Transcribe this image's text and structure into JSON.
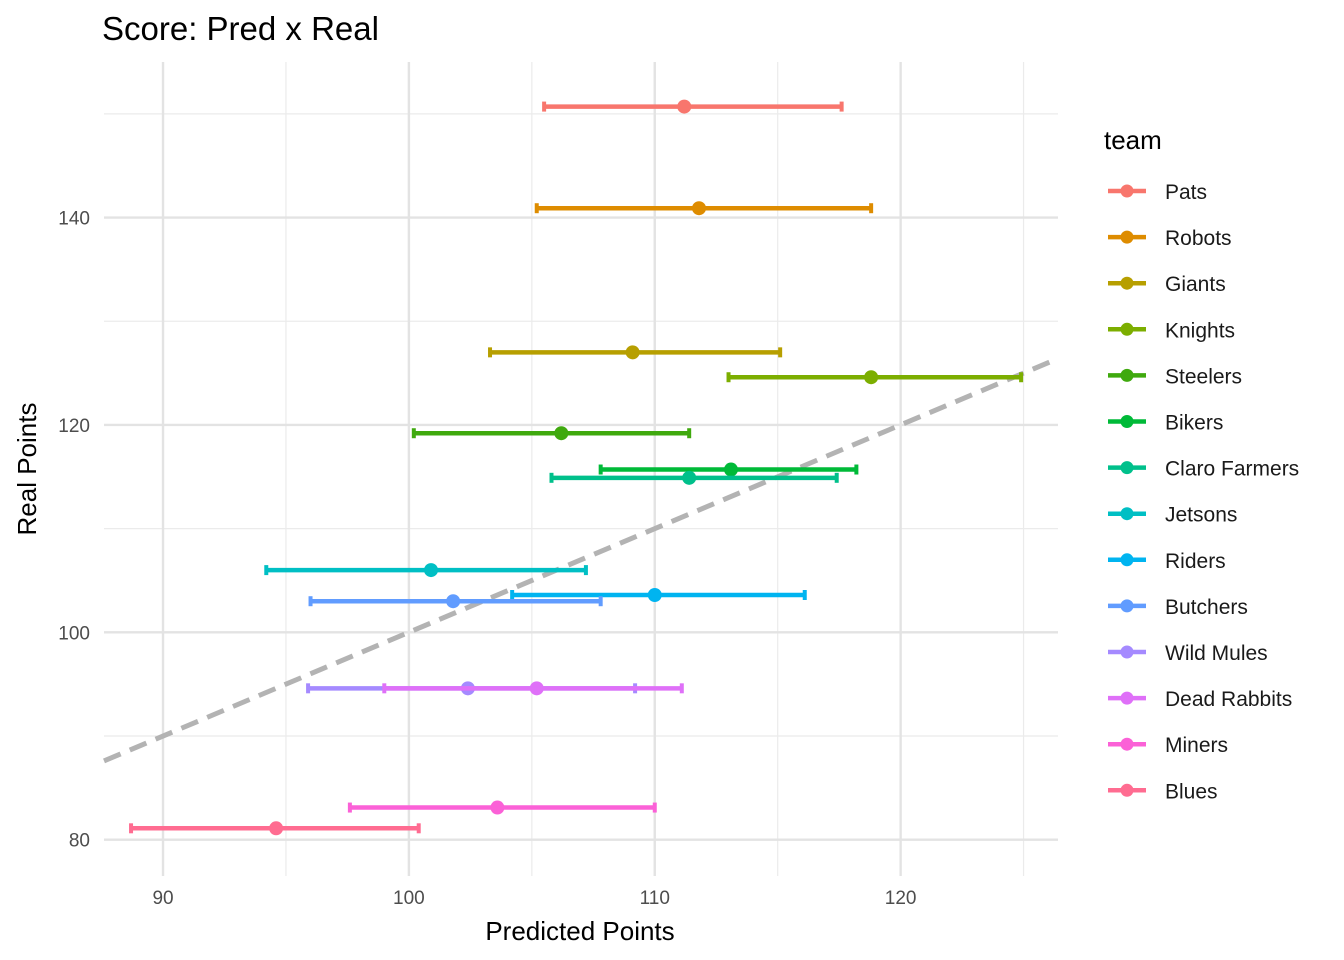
{
  "chart_data": {
    "type": "errorbar-scatter",
    "title": "Score: Pred x Real",
    "xlabel": "Predicted Points",
    "ylabel": "Real Points",
    "xlim": [
      87.6,
      126.4
    ],
    "ylim": [
      76.5,
      155
    ],
    "x_ticks": [
      90,
      100,
      110,
      120
    ],
    "x_tick_labels": [
      "90",
      "100",
      "110",
      "120"
    ],
    "x_minor": [
      95,
      105,
      115,
      125
    ],
    "y_ticks": [
      80,
      100,
      120,
      140
    ],
    "y_tick_labels": [
      "80",
      "100",
      "120",
      "140"
    ],
    "y_minor": [
      90,
      110,
      130,
      150
    ],
    "grid": true,
    "reference_line": {
      "type": "identity",
      "style": "dashed",
      "color": "#b3b3b3"
    },
    "legend": {
      "title": "team",
      "position": "right"
    },
    "series": [
      {
        "name": "Pats",
        "color": "#F8766D",
        "predicted": 111.2,
        "lower": 105.5,
        "upper": 117.6,
        "real": 150.7
      },
      {
        "name": "Robots",
        "color": "#DE8C00",
        "predicted": 111.8,
        "lower": 105.2,
        "upper": 118.8,
        "real": 140.9
      },
      {
        "name": "Giants",
        "color": "#B79F00",
        "predicted": 109.1,
        "lower": 103.3,
        "upper": 115.1,
        "real": 127.0
      },
      {
        "name": "Knights",
        "color": "#7CAE00",
        "predicted": 118.8,
        "lower": 113.0,
        "upper": 124.9,
        "real": 124.6
      },
      {
        "name": "Steelers",
        "color": "#3FA90E",
        "predicted": 106.2,
        "lower": 100.2,
        "upper": 111.4,
        "real": 119.2
      },
      {
        "name": "Bikers",
        "color": "#00BA38",
        "predicted": 113.1,
        "lower": 107.8,
        "upper": 118.2,
        "real": 115.7
      },
      {
        "name": "Claro Farmers",
        "color": "#00C08B",
        "predicted": 111.4,
        "lower": 105.8,
        "upper": 117.4,
        "real": 114.9
      },
      {
        "name": "Jetsons",
        "color": "#00BFC4",
        "predicted": 100.9,
        "lower": 94.2,
        "upper": 107.2,
        "real": 106.0
      },
      {
        "name": "Riders",
        "color": "#00B4F0",
        "predicted": 110.0,
        "lower": 104.2,
        "upper": 116.1,
        "real": 103.6
      },
      {
        "name": "Butchers",
        "color": "#619CFF",
        "predicted": 101.8,
        "lower": 96.0,
        "upper": 107.8,
        "real": 103.0
      },
      {
        "name": "Wild Mules",
        "color": "#A58AFF",
        "predicted": 102.4,
        "lower": 95.9,
        "upper": 109.2,
        "real": 94.6
      },
      {
        "name": "Dead Rabbits",
        "color": "#DF70F8",
        "predicted": 105.2,
        "lower": 99.0,
        "upper": 111.1,
        "real": 94.6
      },
      {
        "name": "Miners",
        "color": "#FB61D7",
        "predicted": 103.6,
        "lower": 97.6,
        "upper": 110.0,
        "real": 83.1
      },
      {
        "name": "Blues",
        "color": "#FF6C91",
        "predicted": 94.6,
        "lower": 88.7,
        "upper": 100.4,
        "real": 81.1
      }
    ]
  }
}
